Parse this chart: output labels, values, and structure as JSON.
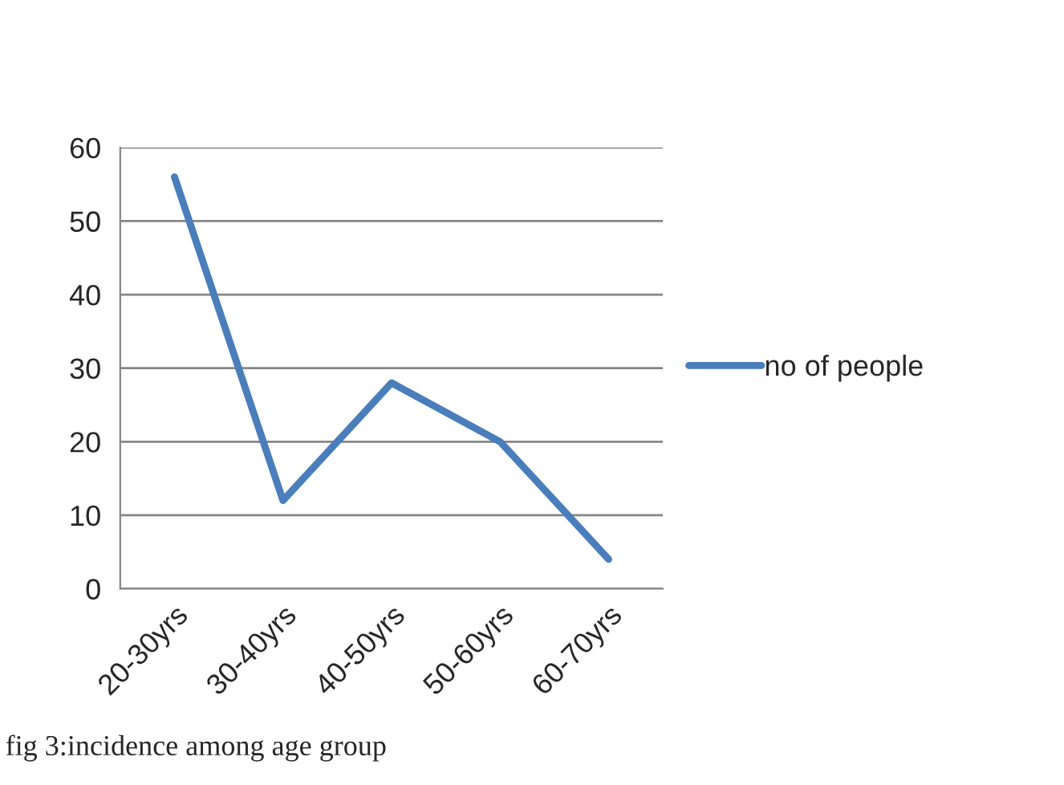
{
  "chart_data": {
    "type": "line",
    "categories": [
      "20-30yrs",
      "30-40yrs",
      "40-50yrs",
      "50-60yrs",
      "60-70yrs"
    ],
    "series": [
      {
        "name": "no of people",
        "color": "#4a7ebb",
        "values": [
          56,
          12,
          28,
          20,
          4
        ]
      }
    ],
    "ylim": [
      0,
      60
    ],
    "yticks": [
      0,
      10,
      20,
      30,
      40,
      50,
      60
    ],
    "grid": "y",
    "legend": "right",
    "marker": "none",
    "line_style": "solid",
    "annotations": [
      "fig 3:incidence among age group"
    ]
  }
}
